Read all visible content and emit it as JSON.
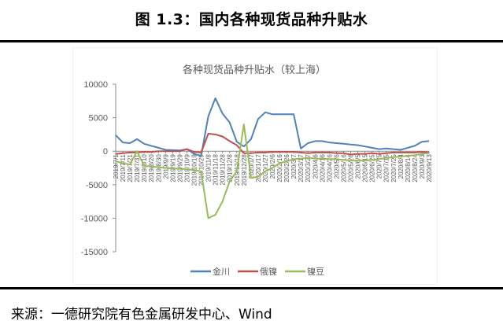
{
  "figure": {
    "title": "图 1.3：国内各种现货品种升贴水",
    "source": "来源：一德研究院有色金属研发中心、Wind"
  },
  "chart_data": {
    "type": "line",
    "title": "各种现货品种升贴水（较上海）",
    "xlabel": "",
    "ylabel": "",
    "ylim": [
      -15000,
      10000
    ],
    "yticks": [
      10000,
      5000,
      0,
      -5000,
      -10000,
      -15000
    ],
    "grid": false,
    "legend_position": "bottom",
    "x": [
      "2019/7/1",
      "2019/7/11",
      "2019/7/21",
      "2019/7/31",
      "2019/8/10",
      "2019/8/20",
      "2019/8/30",
      "2019/9/9",
      "2019/9/19",
      "2019/9/29",
      "2019/10/9",
      "2019/10/19",
      "2019/10/29",
      "2019/11/8",
      "2019/11/18",
      "2019/11/28",
      "2019/12/8",
      "2019/12/18",
      "2019/12/28",
      "2020/1/7",
      "2020/1/17",
      "2020/1/27",
      "2020/2/6",
      "2020/2/16",
      "2020/2/26",
      "2020/3/7",
      "2020/3/17",
      "2020/3/27",
      "2020/4/6",
      "2020/4/16",
      "2020/4/26",
      "2020/5/6",
      "2020/5/16",
      "2020/5/26",
      "2020/6/5",
      "2020/6/15",
      "2020/6/25",
      "2020/7/5",
      "2020/7/15",
      "2020/7/25",
      "2020/8/4",
      "2020/8/14",
      "2020/8/24",
      "2020/9/3",
      "2020/9/13"
    ],
    "series": [
      {
        "name": "金川",
        "color": "#4f81bd",
        "values": [
          2400,
          1300,
          1200,
          1800,
          1100,
          800,
          500,
          200,
          150,
          100,
          300,
          -400,
          -700,
          5200,
          7900,
          5600,
          4300,
          1400,
          700,
          1800,
          4800,
          5800,
          5500,
          5500,
          5500,
          5500,
          400,
          1200,
          1500,
          1500,
          1300,
          1200,
          1100,
          1000,
          900,
          700,
          500,
          300,
          400,
          300,
          200,
          500,
          800,
          1400,
          1500
        ]
      },
      {
        "name": "俄镍",
        "color": "#c0504d",
        "values": [
          -400,
          -300,
          -200,
          -200,
          -100,
          -100,
          0,
          0,
          0,
          0,
          300,
          -100,
          -200,
          2600,
          2500,
          2200,
          1500,
          900,
          -300,
          -300,
          -200,
          -200,
          -100,
          -100,
          -100,
          -100,
          -200,
          -300,
          -200,
          -200,
          -200,
          -300,
          -300,
          -500,
          -400,
          -400,
          -300,
          -400,
          -300,
          -200,
          -200,
          -200,
          -200,
          -100,
          -200
        ]
      },
      {
        "name": "镍豆",
        "color": "#9bbb59",
        "values": [
          -1500,
          -1800,
          -2000,
          0,
          -2200,
          -2300,
          -2400,
          -2500,
          -2600,
          -2600,
          -2700,
          -2800,
          -3000,
          -10000,
          -9500,
          -7500,
          -4500,
          -3000,
          4000,
          -4000,
          -3800,
          -3000,
          -2500,
          -1800,
          -1500,
          -1200,
          -1100,
          -1000,
          -1100,
          -1100,
          -1200,
          -1200,
          -1300,
          -1400,
          -1400,
          -1400,
          -1300,
          -1200,
          -1000,
          -900,
          -800,
          -700,
          -600,
          -400,
          -300
        ]
      }
    ]
  }
}
